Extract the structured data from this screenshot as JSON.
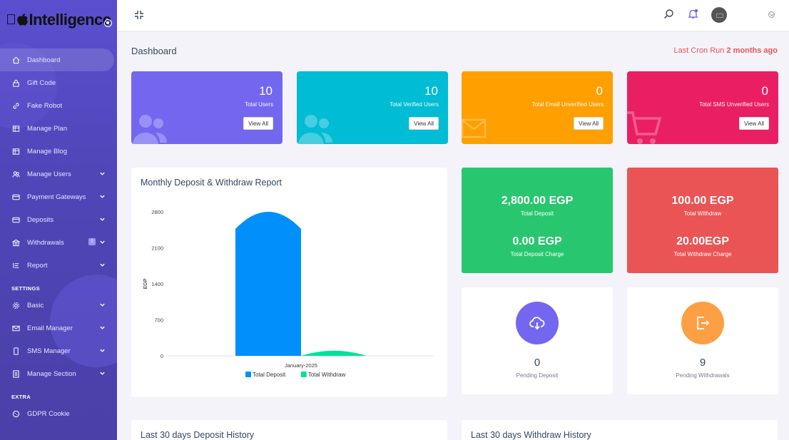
{
  "brand": {
    "logo_text": "Intelligence"
  },
  "sidebar": {
    "items": [
      {
        "label": "Dashboard",
        "icon": "home-icon"
      },
      {
        "label": "Gift Code",
        "icon": "lock-icon"
      },
      {
        "label": "Fake Robot",
        "icon": "link-icon"
      },
      {
        "label": "Manage Plan",
        "icon": "grid-icon"
      },
      {
        "label": "Manage Blog",
        "icon": "grid-icon"
      },
      {
        "label": "Manage Users",
        "icon": "users-icon"
      },
      {
        "label": "Payment Gateways",
        "icon": "card-icon"
      },
      {
        "label": "Deposits",
        "icon": "card-icon"
      },
      {
        "label": "Withdrawals",
        "icon": "bank-icon",
        "badge": "!"
      },
      {
        "label": "Report",
        "icon": "list-icon"
      }
    ],
    "settings_heading": "SETTINGS",
    "settings_items": [
      {
        "label": "Basic",
        "icon": "gear-icon"
      },
      {
        "label": "Email Manager",
        "icon": "mail-icon"
      },
      {
        "label": "SMS Manager",
        "icon": "phone-icon"
      },
      {
        "label": "Manage Section",
        "icon": "doc-icon"
      }
    ],
    "extra_heading": "EXTRA",
    "extra_items": [
      {
        "label": "GDPR Cookie",
        "icon": "cookie-icon"
      }
    ]
  },
  "header": {
    "page_title": "Dashboard",
    "cron_label": "Last Cron Run",
    "cron_value": "2 months ago"
  },
  "stats": [
    {
      "value": "10",
      "label": "Total Users",
      "button": "View All",
      "color": "#7367f0"
    },
    {
      "value": "10",
      "label": "Total Verified Users",
      "button": "View All",
      "color": "#00bcd4"
    },
    {
      "value": "0",
      "label": "Total Email Unverified Users",
      "button": "View All",
      "color": "#ff9f00"
    },
    {
      "value": "0",
      "label": "Total SMS Unverified Users",
      "button": "View All",
      "color": "#ea1f63"
    }
  ],
  "totals": {
    "deposit": {
      "value": "2,800.00 EGP",
      "label": "Total Deposit",
      "charge_value": "0.00 EGP",
      "charge_label": "Total Deposit Charge",
      "color": "#28c76f"
    },
    "withdraw": {
      "value": "100.00 EGP",
      "label": "Total Withdraw",
      "charge_value": "20.00EGP",
      "charge_label": "Total Withdraw Charge",
      "color": "#ea5455"
    }
  },
  "pending": {
    "deposit": {
      "value": "0",
      "label": "Pending Deposit",
      "color": "#7367f0"
    },
    "withdraw": {
      "value": "9",
      "label": "Pending Withdrawals",
      "color": "#ff9f43"
    }
  },
  "history": {
    "deposit_title": "Last 30 days Deposit History",
    "withdraw_title": "Last 30 days Withdraw History"
  },
  "chart_data": {
    "type": "bar",
    "title": "Monthly Deposit & Withdraw Report",
    "ylabel": "EGP",
    "xlabel": "",
    "categories": [
      "January-2025"
    ],
    "series": [
      {
        "name": "Total Deposit",
        "values": [
          2800
        ],
        "color": "#008ffb"
      },
      {
        "name": "Total Withdraw",
        "values": [
          100
        ],
        "color": "#00e396"
      }
    ],
    "yticks": [
      "2800",
      "2100",
      "1400",
      "700",
      "0"
    ],
    "ylim": [
      0,
      2800
    ],
    "legend": "bottom-center",
    "grid": false
  }
}
